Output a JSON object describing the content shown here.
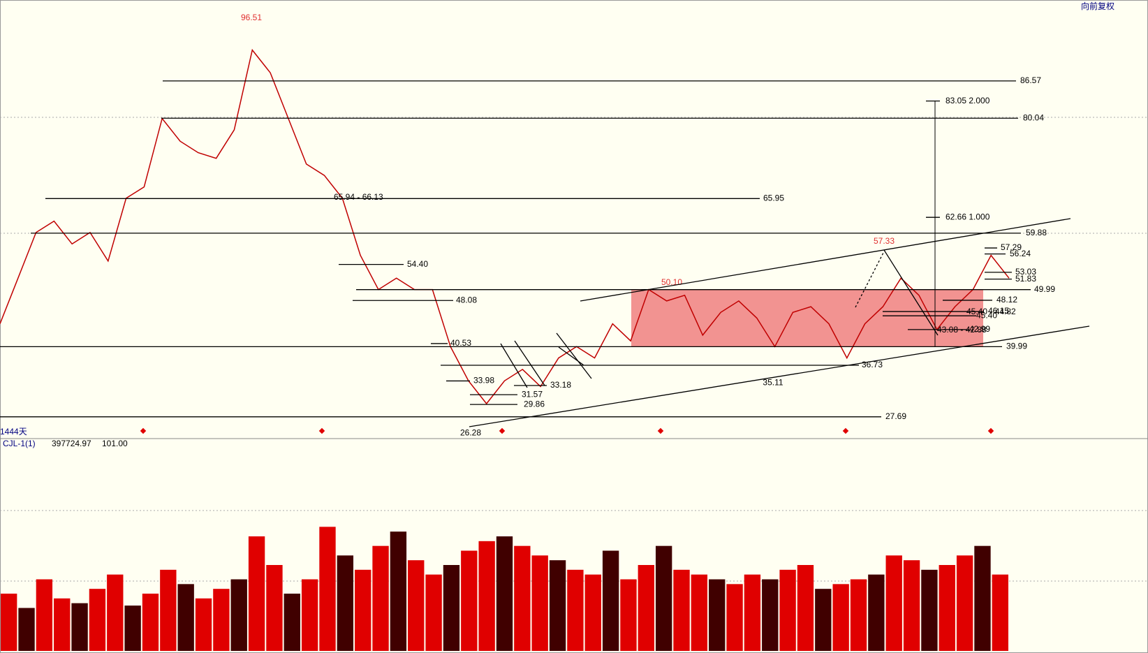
{
  "chart_data": {
    "type": "line",
    "title": "向前复权",
    "period_label": "1444天",
    "indicator": {
      "name": "CJL-1(1)",
      "value_labels": [
        "397724.97",
        "101.00"
      ]
    },
    "ylim": [
      24.73,
      100.76
    ],
    "vlim": [
      0,
      420000
    ],
    "series": [
      {
        "name": "price",
        "color": "#c00000",
        "values": [
          44,
          52,
          60,
          62,
          58,
          60,
          55,
          66,
          68,
          80,
          76,
          74,
          73,
          78,
          92,
          88,
          80,
          72,
          70,
          66,
          56,
          50,
          52,
          50,
          50,
          40,
          34,
          30,
          34,
          36,
          33,
          38,
          40,
          38,
          44,
          41,
          50,
          48,
          49,
          42,
          46,
          48,
          45,
          40,
          46,
          47,
          44,
          38,
          44,
          47,
          52,
          49,
          43,
          47,
          50,
          56,
          52
        ]
      },
      {
        "name": "volume",
        "color": "#e00000",
        "values": [
          120000,
          90000,
          150000,
          110000,
          100000,
          130000,
          160000,
          95000,
          120000,
          170000,
          140000,
          110000,
          130000,
          150000,
          240000,
          180000,
          120000,
          150000,
          260000,
          200000,
          170000,
          220000,
          250000,
          190000,
          160000,
          180000,
          210000,
          230000,
          240000,
          220000,
          200000,
          190000,
          170000,
          160000,
          210000,
          150000,
          180000,
          220000,
          170000,
          160000,
          150000,
          140000,
          160000,
          150000,
          170000,
          180000,
          130000,
          140000,
          150000,
          160000,
          200000,
          190000,
          170000,
          180000,
          200000,
          220000,
          160000
        ]
      }
    ],
    "levels": [
      {
        "value": 86.57,
        "label": "86.57"
      },
      {
        "value": 80.04,
        "label": "80.04"
      },
      {
        "value": 65.95,
        "label": "65.95"
      },
      {
        "value": 59.88,
        "label": "59.88"
      },
      {
        "value": 54.4,
        "label": "54.40"
      },
      {
        "value": 48.08,
        "label": "48.08"
      },
      {
        "value": 49.99,
        "label": "49.99"
      },
      {
        "value": 40.53,
        "label": "40.53"
      },
      {
        "value": 39.99,
        "label": "39.99"
      },
      {
        "value": 36.73,
        "label": "36.73"
      },
      {
        "value": 33.98,
        "label": "33.98"
      },
      {
        "value": 31.57,
        "label": "31.57"
      },
      {
        "value": 33.18,
        "label": "33.18"
      },
      {
        "value": 29.86,
        "label": "29.86"
      },
      {
        "value": 27.69,
        "label": "27.69"
      },
      {
        "value": 48.12,
        "label": "48.12"
      },
      {
        "value": 57.29,
        "label": "57.29"
      },
      {
        "value": 56.24,
        "label": "56.24"
      },
      {
        "value": 53.03,
        "label": "53.03"
      },
      {
        "value": 51.83,
        "label": "51.83"
      },
      {
        "value": 46.15,
        "label": "46.15"
      },
      {
        "value": 45.4,
        "label": "45.40"
      },
      {
        "value": 42.99,
        "label": "42.99"
      },
      {
        "value": 62.66,
        "label": "62.66  1.000"
      },
      {
        "value": 83.05,
        "label": "83.05  2.000"
      }
    ],
    "annotations": [
      {
        "value": 96.51,
        "label": "96.51"
      },
      {
        "value": 26.28,
        "label": "26.28"
      },
      {
        "value": 35.11,
        "label": "35.11"
      },
      {
        "value": 57.33,
        "label": "57.33"
      },
      {
        "value": 50.1,
        "label": "50.10"
      },
      {
        "value": 66.13,
        "label": "65.94 - 66.13"
      },
      {
        "value": 42.88,
        "label": "43.08 - 42.88"
      },
      {
        "value": 44.82,
        "label": "45.40 - 44.82"
      }
    ]
  }
}
